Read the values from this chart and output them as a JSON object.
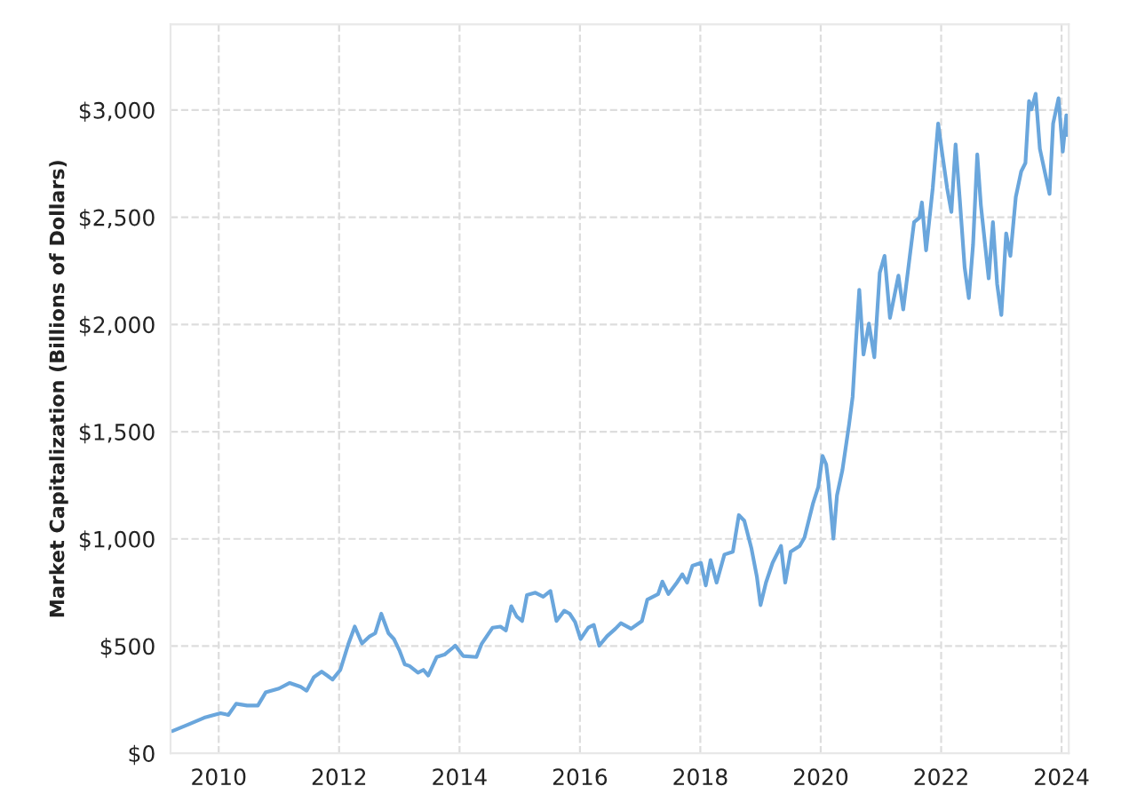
{
  "chart_data": {
    "type": "line",
    "ylabel": "Market Capitalization (Billions of Dollars)",
    "xlim": [
      2009.2,
      2024.12
    ],
    "xticks": [
      2010,
      2012,
      2014,
      2016,
      2018,
      2020,
      2022,
      2024
    ],
    "ylim": [
      0,
      3400
    ],
    "yticks": [
      {
        "value": 0,
        "label": "$0"
      },
      {
        "value": 500,
        "label": "$500"
      },
      {
        "value": 1000,
        "label": "$1,000"
      },
      {
        "value": 1500,
        "label": "$1,500"
      },
      {
        "value": 2000,
        "label": "$2,000"
      },
      {
        "value": 2500,
        "label": "$2,500"
      },
      {
        "value": 3000,
        "label": "$3,000"
      }
    ],
    "grid": true,
    "line_style": "solid",
    "marker": "none",
    "series": [
      {
        "color": "#6aa6dc",
        "x": [
          2009.24,
          2009.49,
          2009.76,
          2010.03,
          2010.16,
          2010.29,
          2010.47,
          2010.65,
          2010.78,
          2011.0,
          2011.18,
          2011.36,
          2011.46,
          2011.58,
          2011.71,
          2011.8,
          2011.89,
          2012.02,
          2012.15,
          2012.26,
          2012.38,
          2012.51,
          2012.6,
          2012.7,
          2012.82,
          2012.91,
          2013.0,
          2013.09,
          2013.17,
          2013.31,
          2013.4,
          2013.48,
          2013.62,
          2013.75,
          2013.93,
          2014.06,
          2014.28,
          2014.37,
          2014.55,
          2014.68,
          2014.77,
          2014.86,
          2014.95,
          2015.04,
          2015.12,
          2015.26,
          2015.39,
          2015.51,
          2015.61,
          2015.74,
          2015.83,
          2015.92,
          2016.01,
          2016.14,
          2016.23,
          2016.32,
          2016.45,
          2016.59,
          2016.68,
          2016.85,
          2017.03,
          2017.12,
          2017.3,
          2017.37,
          2017.47,
          2017.61,
          2017.7,
          2017.78,
          2017.87,
          2018.01,
          2018.09,
          2018.17,
          2018.27,
          2018.4,
          2018.54,
          2018.64,
          2018.73,
          2018.85,
          2018.94,
          2019.0,
          2019.09,
          2019.2,
          2019.34,
          2019.41,
          2019.5,
          2019.65,
          2019.73,
          2019.87,
          2019.96,
          2020.03,
          2020.09,
          2020.13,
          2020.21,
          2020.27,
          2020.36,
          2020.47,
          2020.53,
          2020.58,
          2020.64,
          2020.71,
          2020.8,
          2020.89,
          2020.98,
          2021.06,
          2021.15,
          2021.29,
          2021.37,
          2021.48,
          2021.55,
          2021.64,
          2021.68,
          2021.75,
          2021.86,
          2021.95,
          2022.02,
          2022.1,
          2022.17,
          2022.24,
          2022.31,
          2022.39,
          2022.46,
          2022.53,
          2022.6,
          2022.66,
          2022.79,
          2022.86,
          2022.93,
          2023.0,
          2023.08,
          2023.15,
          2023.24,
          2023.33,
          2023.4,
          2023.46,
          2023.5,
          2023.57,
          2023.64,
          2023.72,
          2023.8,
          2023.86,
          2023.95,
          2024.02,
          2024.08,
          2024.09
        ],
        "values": [
          105,
          134,
          166,
          187,
          179,
          231,
          223,
          223,
          284,
          302,
          328,
          310,
          292,
          355,
          381,
          363,
          344,
          389,
          507,
          591,
          512,
          546,
          560,
          651,
          560,
          533,
          481,
          415,
          407,
          376,
          389,
          363,
          449,
          460,
          502,
          454,
          449,
          512,
          586,
          591,
          573,
          686,
          638,
          617,
          738,
          749,
          730,
          757,
          617,
          665,
          651,
          612,
          533,
          586,
          599,
          502,
          546,
          581,
          607,
          581,
          617,
          717,
          743,
          801,
          743,
          796,
          835,
          796,
          875,
          888,
          783,
          901,
          796,
          927,
          940,
          1111,
          1085,
          954,
          822,
          691,
          796,
          888,
          967,
          796,
          940,
          967,
          1006,
          1164,
          1243,
          1387,
          1348,
          1256,
          1001,
          1203,
          1321,
          1532,
          1663,
          1899,
          2162,
          1860,
          2004,
          1847,
          2241,
          2320,
          2031,
          2228,
          2070,
          2320,
          2477,
          2498,
          2569,
          2346,
          2635,
          2937,
          2793,
          2635,
          2525,
          2840,
          2582,
          2267,
          2123,
          2372,
          2793,
          2556,
          2215,
          2477,
          2188,
          2044,
          2425,
          2320,
          2595,
          2714,
          2753,
          3042,
          3003,
          3076,
          2819,
          2714,
          2609,
          2937,
          3055,
          2806,
          2976,
          2884
        ]
      }
    ]
  }
}
